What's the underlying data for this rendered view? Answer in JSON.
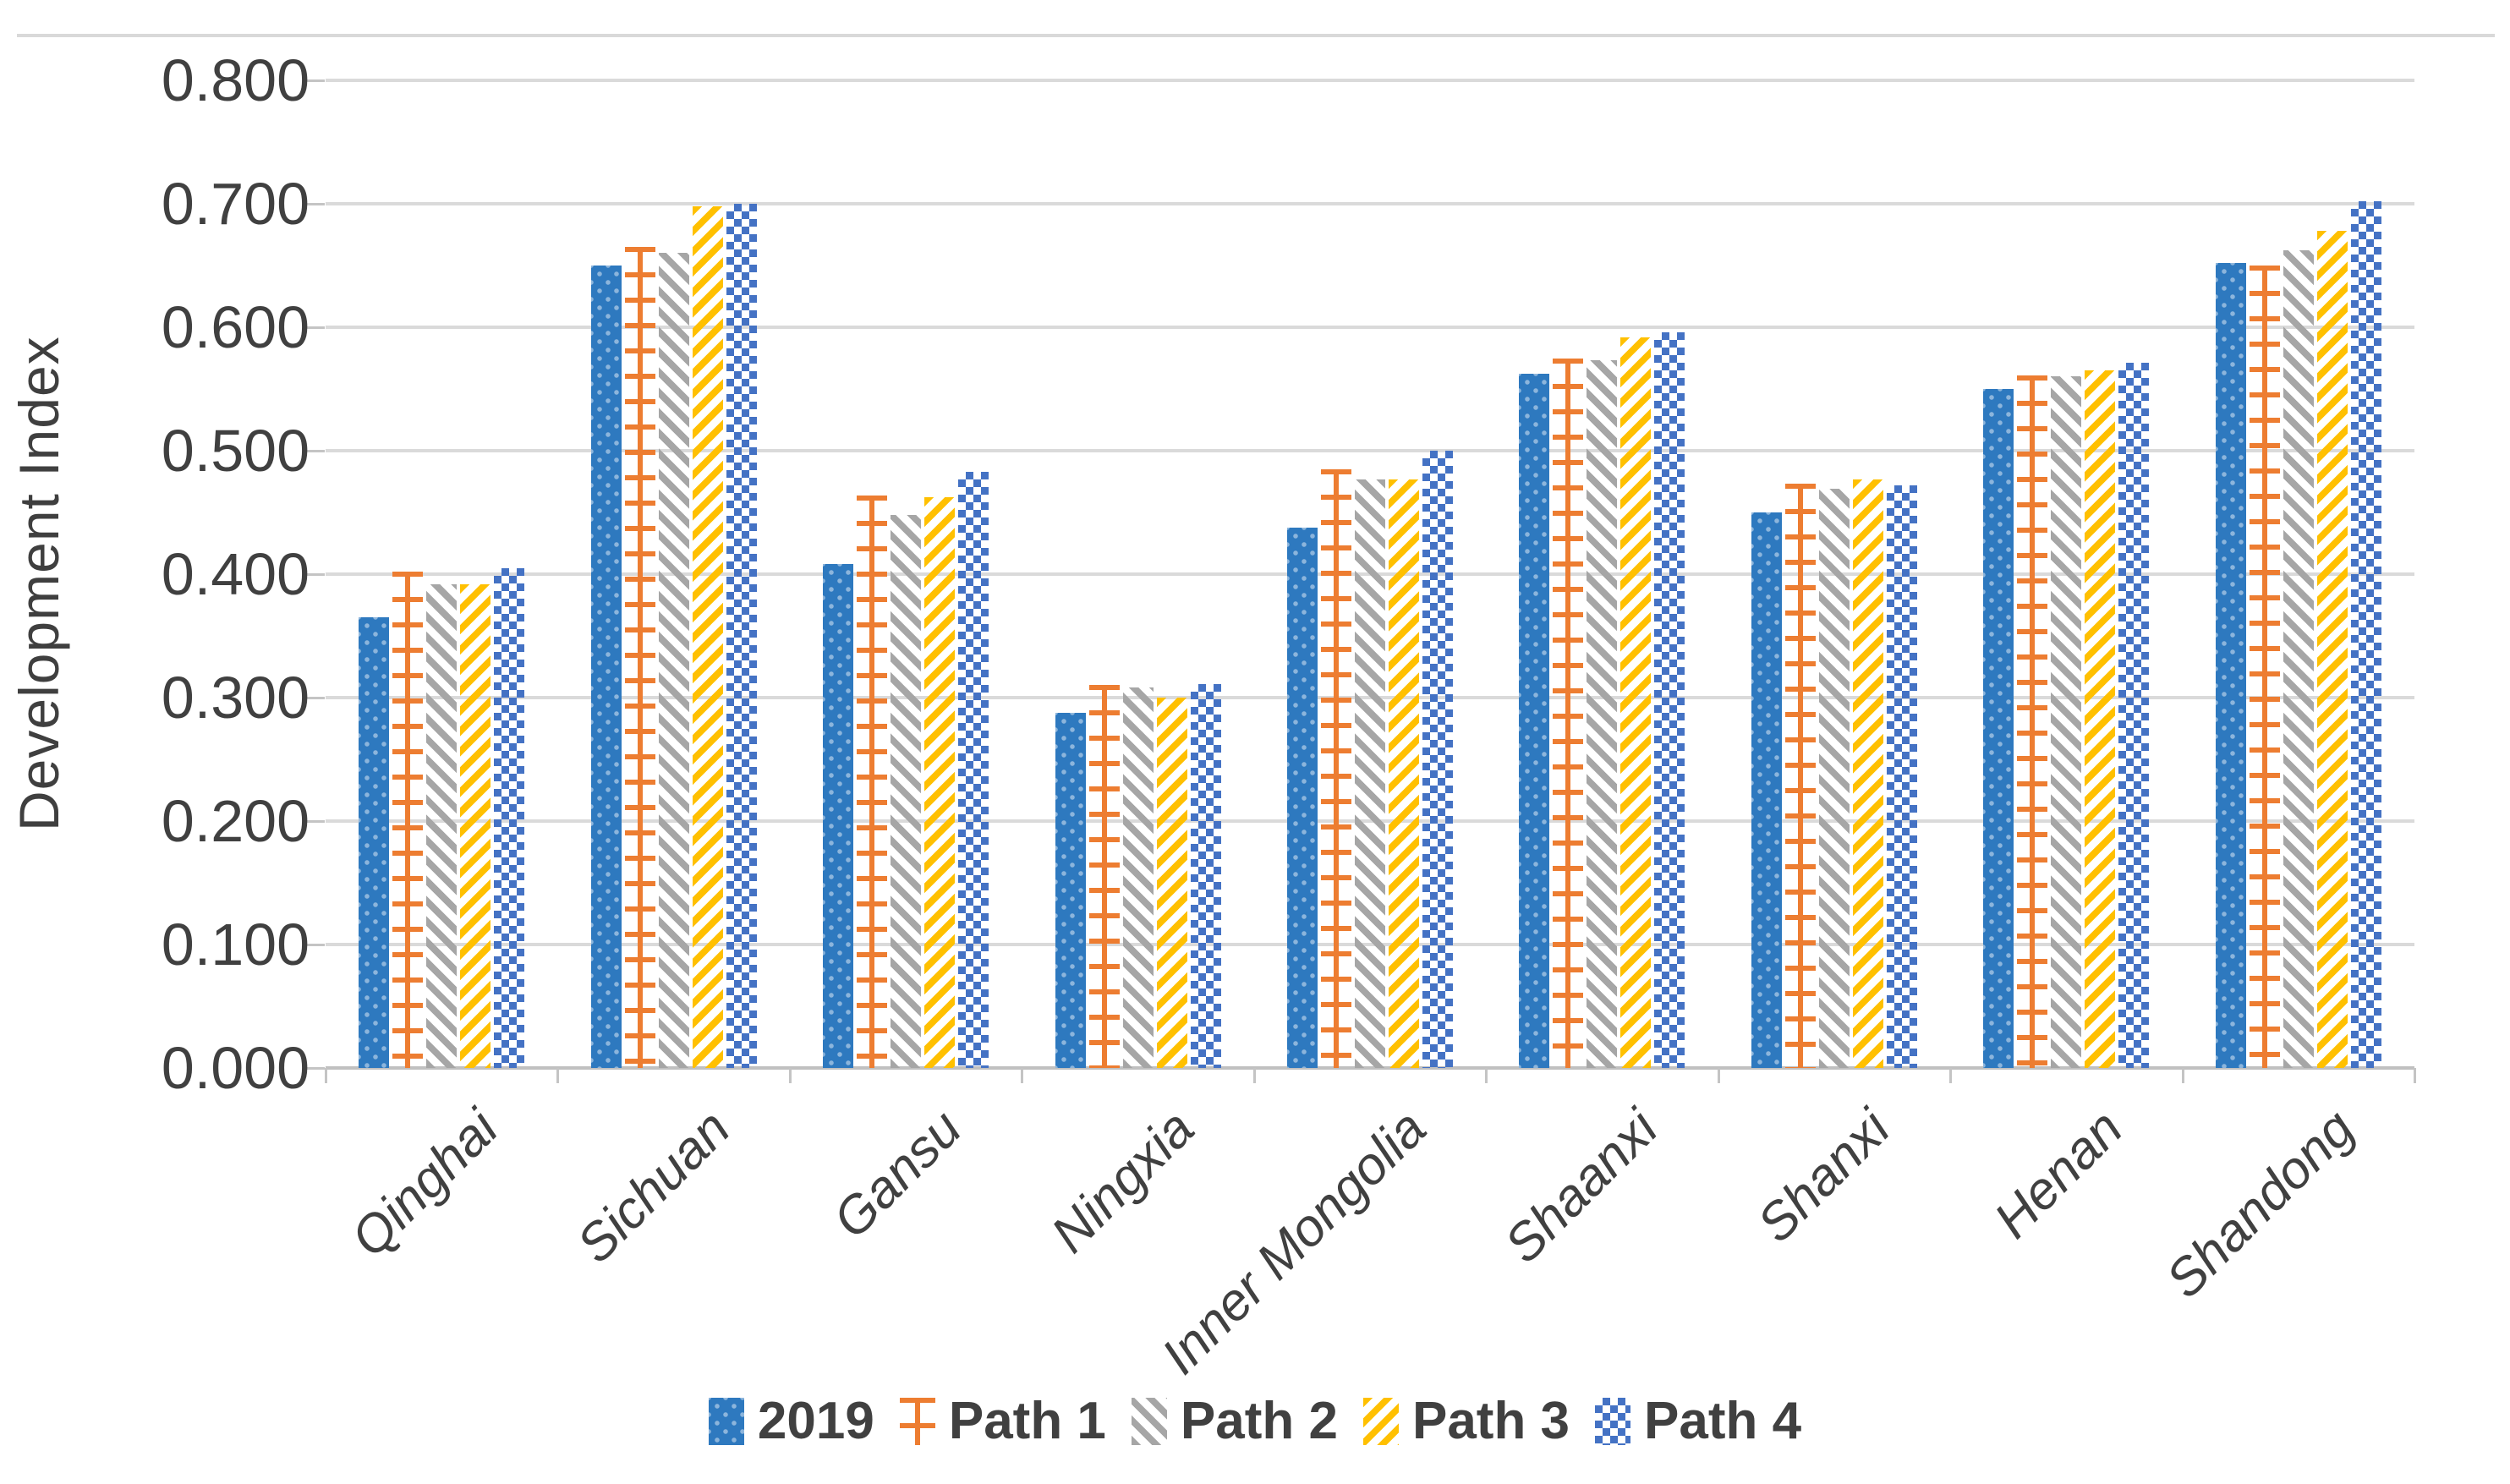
{
  "chart_data": {
    "type": "bar",
    "title": "",
    "xlabel": "",
    "ylabel": "Development Index",
    "ylim": [
      0,
      0.8
    ],
    "grid": true,
    "legend_position": "bottom",
    "y_ticks": [
      "0.000",
      "0.100",
      "0.200",
      "0.300",
      "0.400",
      "0.500",
      "0.600",
      "0.700",
      "0.800"
    ],
    "categories": [
      "Qinghai",
      "Sichuan",
      "Gansu",
      "Ningxia",
      "Inner Mongolia",
      "Shaanxi",
      "Shanxi",
      "Henan",
      "Shandong"
    ],
    "series": [
      {
        "name": "2019",
        "color": "#2E79BF",
        "pattern": "dotted-solid",
        "values": [
          0.365,
          0.65,
          0.408,
          0.288,
          0.438,
          0.562,
          0.45,
          0.55,
          0.652
        ]
      },
      {
        "name": "Path 1",
        "color": "#ED7D31",
        "pattern": "horizontal-rungs-with-stem",
        "values": [
          0.402,
          0.665,
          0.464,
          0.31,
          0.485,
          0.575,
          0.473,
          0.561,
          0.65
        ]
      },
      {
        "name": "Path 2",
        "color": "#A6A6A6",
        "pattern": "diagonal-backslash-stripes",
        "values": [
          0.392,
          0.66,
          0.448,
          0.308,
          0.477,
          0.573,
          0.469,
          0.56,
          0.662
        ]
      },
      {
        "name": "Path 3",
        "color": "#FFC000",
        "pattern": "diagonal-slash-stripes",
        "values": [
          0.392,
          0.698,
          0.462,
          0.3,
          0.477,
          0.592,
          0.477,
          0.565,
          0.678
        ]
      },
      {
        "name": "Path 4",
        "color": "#4472C4",
        "pattern": "diamond-lattice",
        "values": [
          0.405,
          0.7,
          0.483,
          0.311,
          0.5,
          0.596,
          0.472,
          0.571,
          0.702
        ]
      }
    ],
    "gridline_color": "#DADADA",
    "axis_line_color": "#C0C0C0",
    "text_color": "#404040"
  }
}
